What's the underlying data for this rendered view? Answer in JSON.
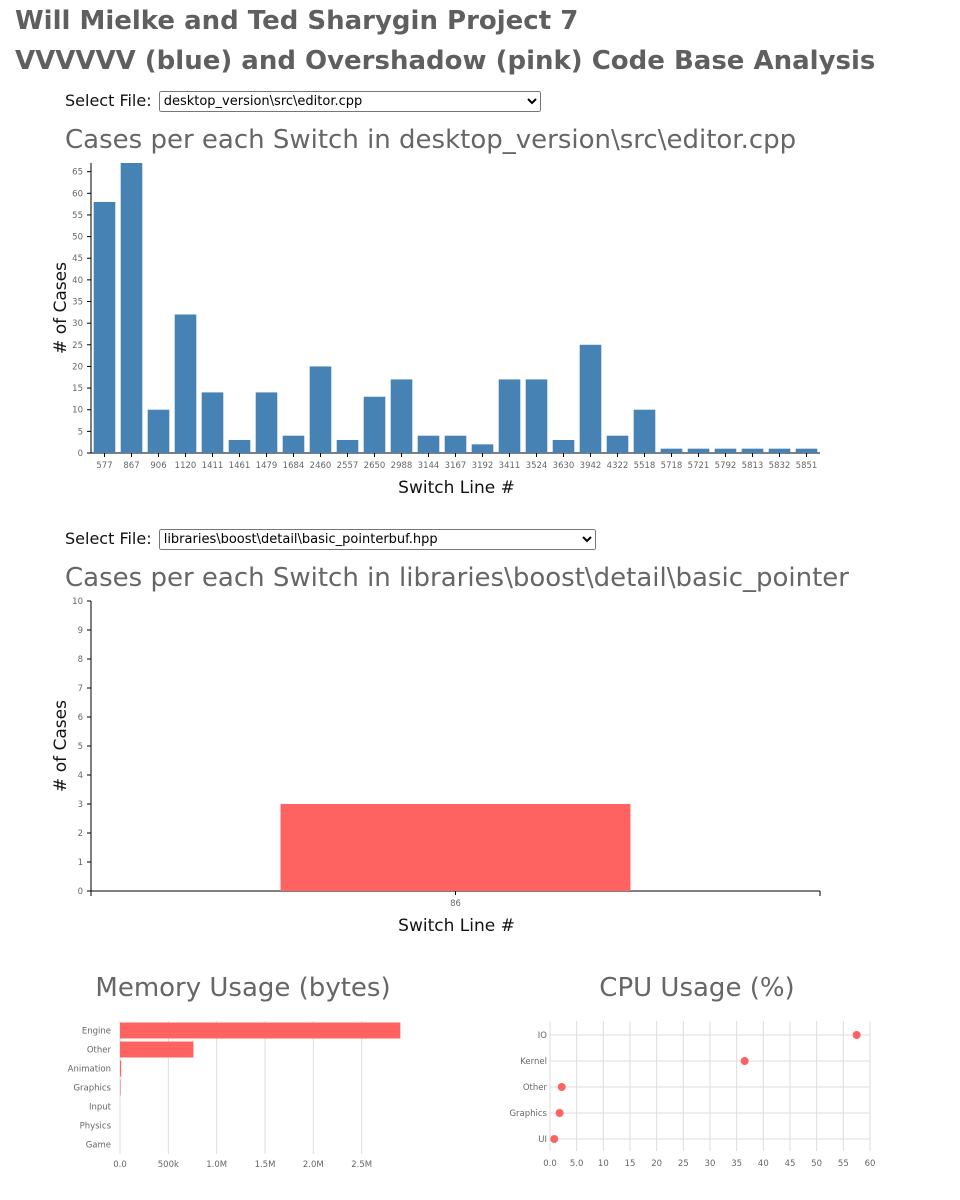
{
  "header": {
    "title": "Will Mielke and Ted Sharygin Project 7",
    "subtitle": "VVVVVV (blue) and Overshadow (pink) Code Base Analysis"
  },
  "colors": {
    "blue": "#4682b4",
    "pink": "#ff6361",
    "grid": "#dddddd"
  },
  "selector1": {
    "label": "Select File:",
    "value": "desktop_version\\src\\editor.cpp"
  },
  "selector2": {
    "label": "Select File:",
    "value": "libraries\\boost\\detail\\basic_pointerbuf.hpp"
  },
  "chart_data": [
    {
      "type": "bar",
      "title": "Cases per each Switch in desktop_version\\src\\editor.cpp",
      "xlabel": "Switch Line #",
      "ylabel": "# of Cases",
      "ylim": [
        0,
        67
      ],
      "yticks": [
        0,
        5,
        10,
        15,
        20,
        25,
        30,
        35,
        40,
        45,
        50,
        55,
        60,
        65
      ],
      "categories": [
        "577",
        "867",
        "906",
        "1120",
        "1411",
        "1461",
        "1479",
        "1684",
        "2460",
        "2557",
        "2650",
        "2988",
        "3144",
        "3167",
        "3192",
        "3411",
        "3524",
        "3630",
        "3942",
        "4322",
        "5518",
        "5718",
        "5721",
        "5792",
        "5813",
        "5832",
        "5851"
      ],
      "values": [
        58,
        67,
        10,
        32,
        14,
        3,
        14,
        4,
        20,
        3,
        13,
        17,
        4,
        4,
        2,
        17,
        17,
        3,
        25,
        4,
        10,
        1,
        1,
        1,
        1,
        1,
        1
      ]
    },
    {
      "type": "bar",
      "title": "Cases per each Switch in libraries\\boost\\detail\\basic_pointerbuf.hpp",
      "xlabel": "Switch Line #",
      "ylabel": "# of Cases",
      "ylim": [
        0,
        10
      ],
      "yticks": [
        0,
        1,
        2,
        3,
        4,
        5,
        6,
        7,
        8,
        9,
        10
      ],
      "categories": [
        "86"
      ],
      "values": [
        3
      ]
    },
    {
      "type": "bar",
      "orientation": "horizontal",
      "title": "Memory Usage (bytes)",
      "categories": [
        "Engine",
        "Other",
        "Animation",
        "Graphics",
        "Input",
        "Physics",
        "Game"
      ],
      "values": [
        2900000,
        760000,
        12000,
        6000,
        0,
        0,
        0
      ],
      "xlim": [
        0,
        3000000
      ],
      "xticks": [
        0,
        500000,
        1000000,
        1500000,
        2000000,
        2500000
      ],
      "xtick_labels": [
        "0.0",
        "500k",
        "1.0M",
        "1.5M",
        "2.0M",
        "2.5M"
      ]
    },
    {
      "type": "scatter",
      "title": "CPU Usage (%)",
      "categories": [
        "IO",
        "Kernel",
        "Other",
        "Graphics",
        "UI"
      ],
      "values": [
        57.5,
        36.5,
        2.2,
        1.8,
        0.8
      ],
      "xlim": [
        0,
        60
      ],
      "xticks": [
        0,
        5,
        10,
        15,
        20,
        25,
        30,
        35,
        40,
        45,
        50,
        55,
        60
      ],
      "xtick_labels": [
        "0.0",
        "5.0",
        "10",
        "15",
        "20",
        "25",
        "30",
        "35",
        "40",
        "45",
        "50",
        "55",
        "60"
      ]
    }
  ]
}
